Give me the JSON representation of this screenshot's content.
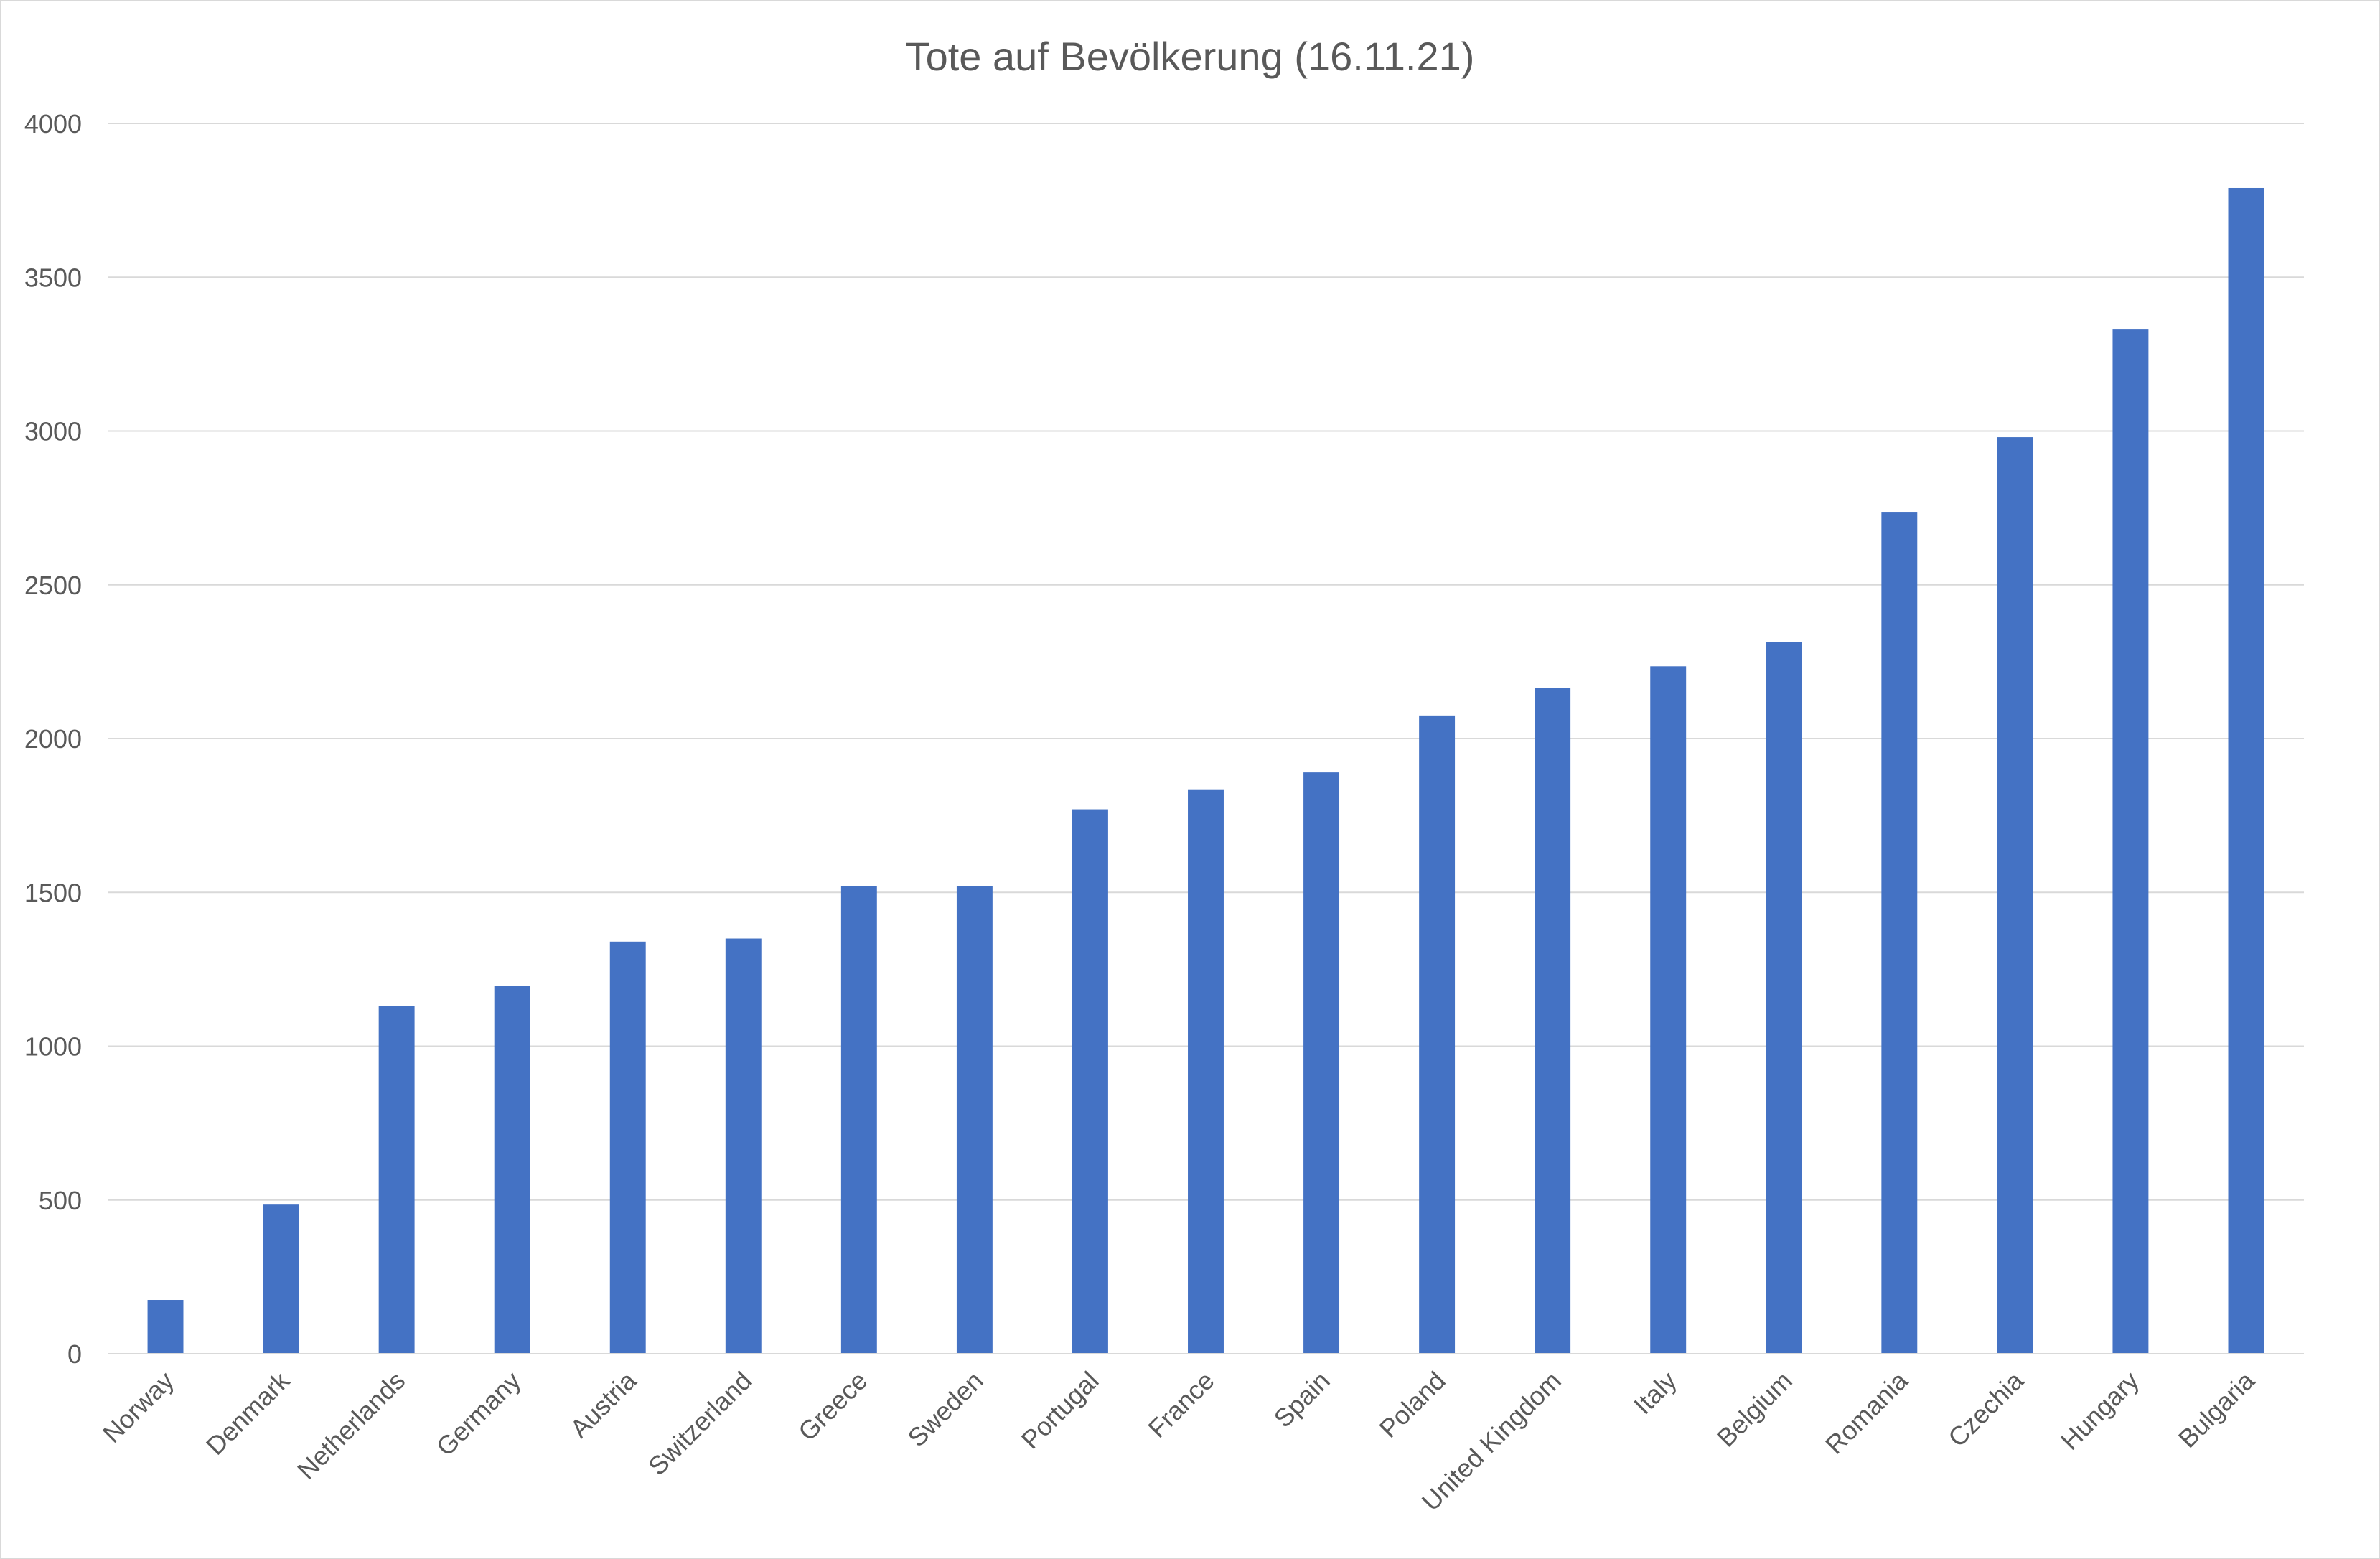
{
  "chart_data": {
    "type": "bar",
    "title": "Tote auf Bevölkerung (16.11.21)",
    "xlabel": "",
    "ylabel": "",
    "categories": [
      "Norway",
      "Denmark",
      "Netherlands",
      "Germany",
      "Austria",
      "Switzerland",
      "Greece",
      "Sweden",
      "Portugal",
      "France",
      "Spain",
      "Poland",
      "United Kingdom",
      "Italy",
      "Belgium",
      "Romania",
      "Czechia",
      "Hungary",
      "Bulgaria"
    ],
    "values": [
      175,
      485,
      1130,
      1195,
      1340,
      1350,
      1520,
      1520,
      1770,
      1835,
      1890,
      2075,
      2165,
      2235,
      2315,
      2735,
      2980,
      3330,
      3790
    ],
    "ylim": [
      0,
      4000
    ],
    "yticks": [
      0,
      500,
      1000,
      1500,
      2000,
      2500,
      3000,
      3500,
      4000
    ],
    "grid": true,
    "legend": "none",
    "bar_color": "#4472C4"
  }
}
